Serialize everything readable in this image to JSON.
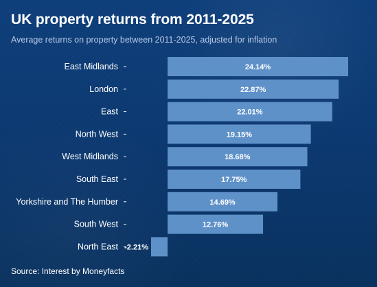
{
  "header": {
    "title": "UK property returns from 2011-2025",
    "subtitle": "Average returns on property between 2011-2025, adjusted for inflation"
  },
  "footer": {
    "source": "Source: Interest by Moneyfacts"
  },
  "chart_data": {
    "type": "bar",
    "orientation": "horizontal",
    "categories": [
      "East Midlands",
      "London",
      "East",
      "North West",
      "West Midlands",
      "South East",
      "Yorkshire and The Humber",
      "South West",
      "North East"
    ],
    "values": [
      24.14,
      22.87,
      22.01,
      19.15,
      18.68,
      17.75,
      14.69,
      12.76,
      -2.21
    ],
    "value_labels": [
      "24.14%",
      "22.87%",
      "22.01%",
      "19.15%",
      "18.68%",
      "17.75%",
      "14.69%",
      "12.76%",
      "-2.21%"
    ],
    "xlim": [
      -2.21,
      24.14
    ],
    "grid": false,
    "legend": "none",
    "colors": {
      "bar": "#5f91c9",
      "text": "#ffffff",
      "tick": "#ffffff",
      "background": "#0c386f"
    }
  }
}
